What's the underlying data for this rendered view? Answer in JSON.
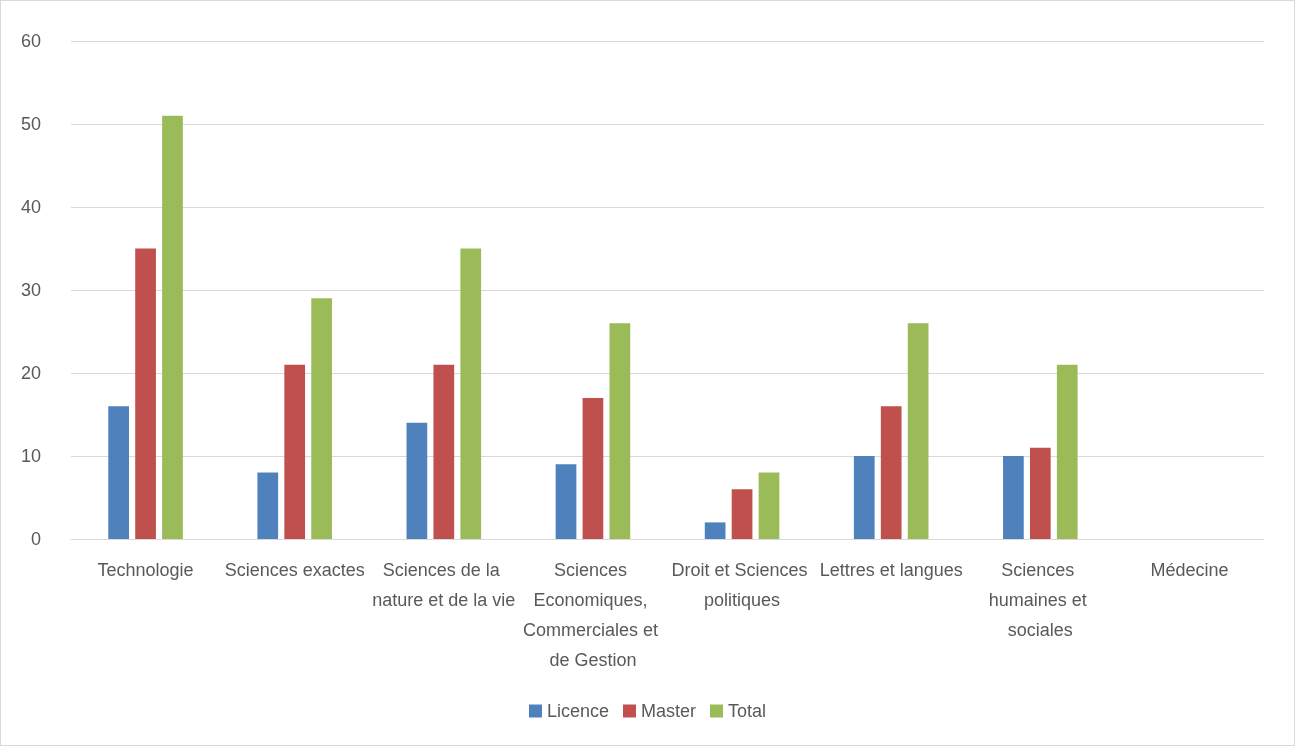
{
  "chart_data": {
    "type": "bar",
    "categories": [
      "Technologie",
      "Sciences exactes",
      "Sciences de la nature et de la vie",
      "Sciences Economiques, Commerciales et de Gestion",
      "Droit et Sciences politiques",
      "Lettres et langues",
      "Sciences humaines et sociales",
      "Médecine"
    ],
    "series": [
      {
        "name": "Licence",
        "color": "#4f81bd",
        "values": [
          16,
          8,
          14,
          9,
          2,
          10,
          10,
          null
        ]
      },
      {
        "name": "Master",
        "color": "#c0504d",
        "values": [
          35,
          21,
          21,
          17,
          6,
          16,
          11,
          null
        ]
      },
      {
        "name": "Total",
        "color": "#9bbb59",
        "values": [
          51,
          29,
          35,
          26,
          8,
          26,
          21,
          null
        ]
      }
    ],
    "ylim": [
      0,
      60
    ],
    "yticks": [
      0,
      10,
      20,
      30,
      40,
      50,
      60
    ],
    "grid": "y",
    "legend": "bottom"
  }
}
